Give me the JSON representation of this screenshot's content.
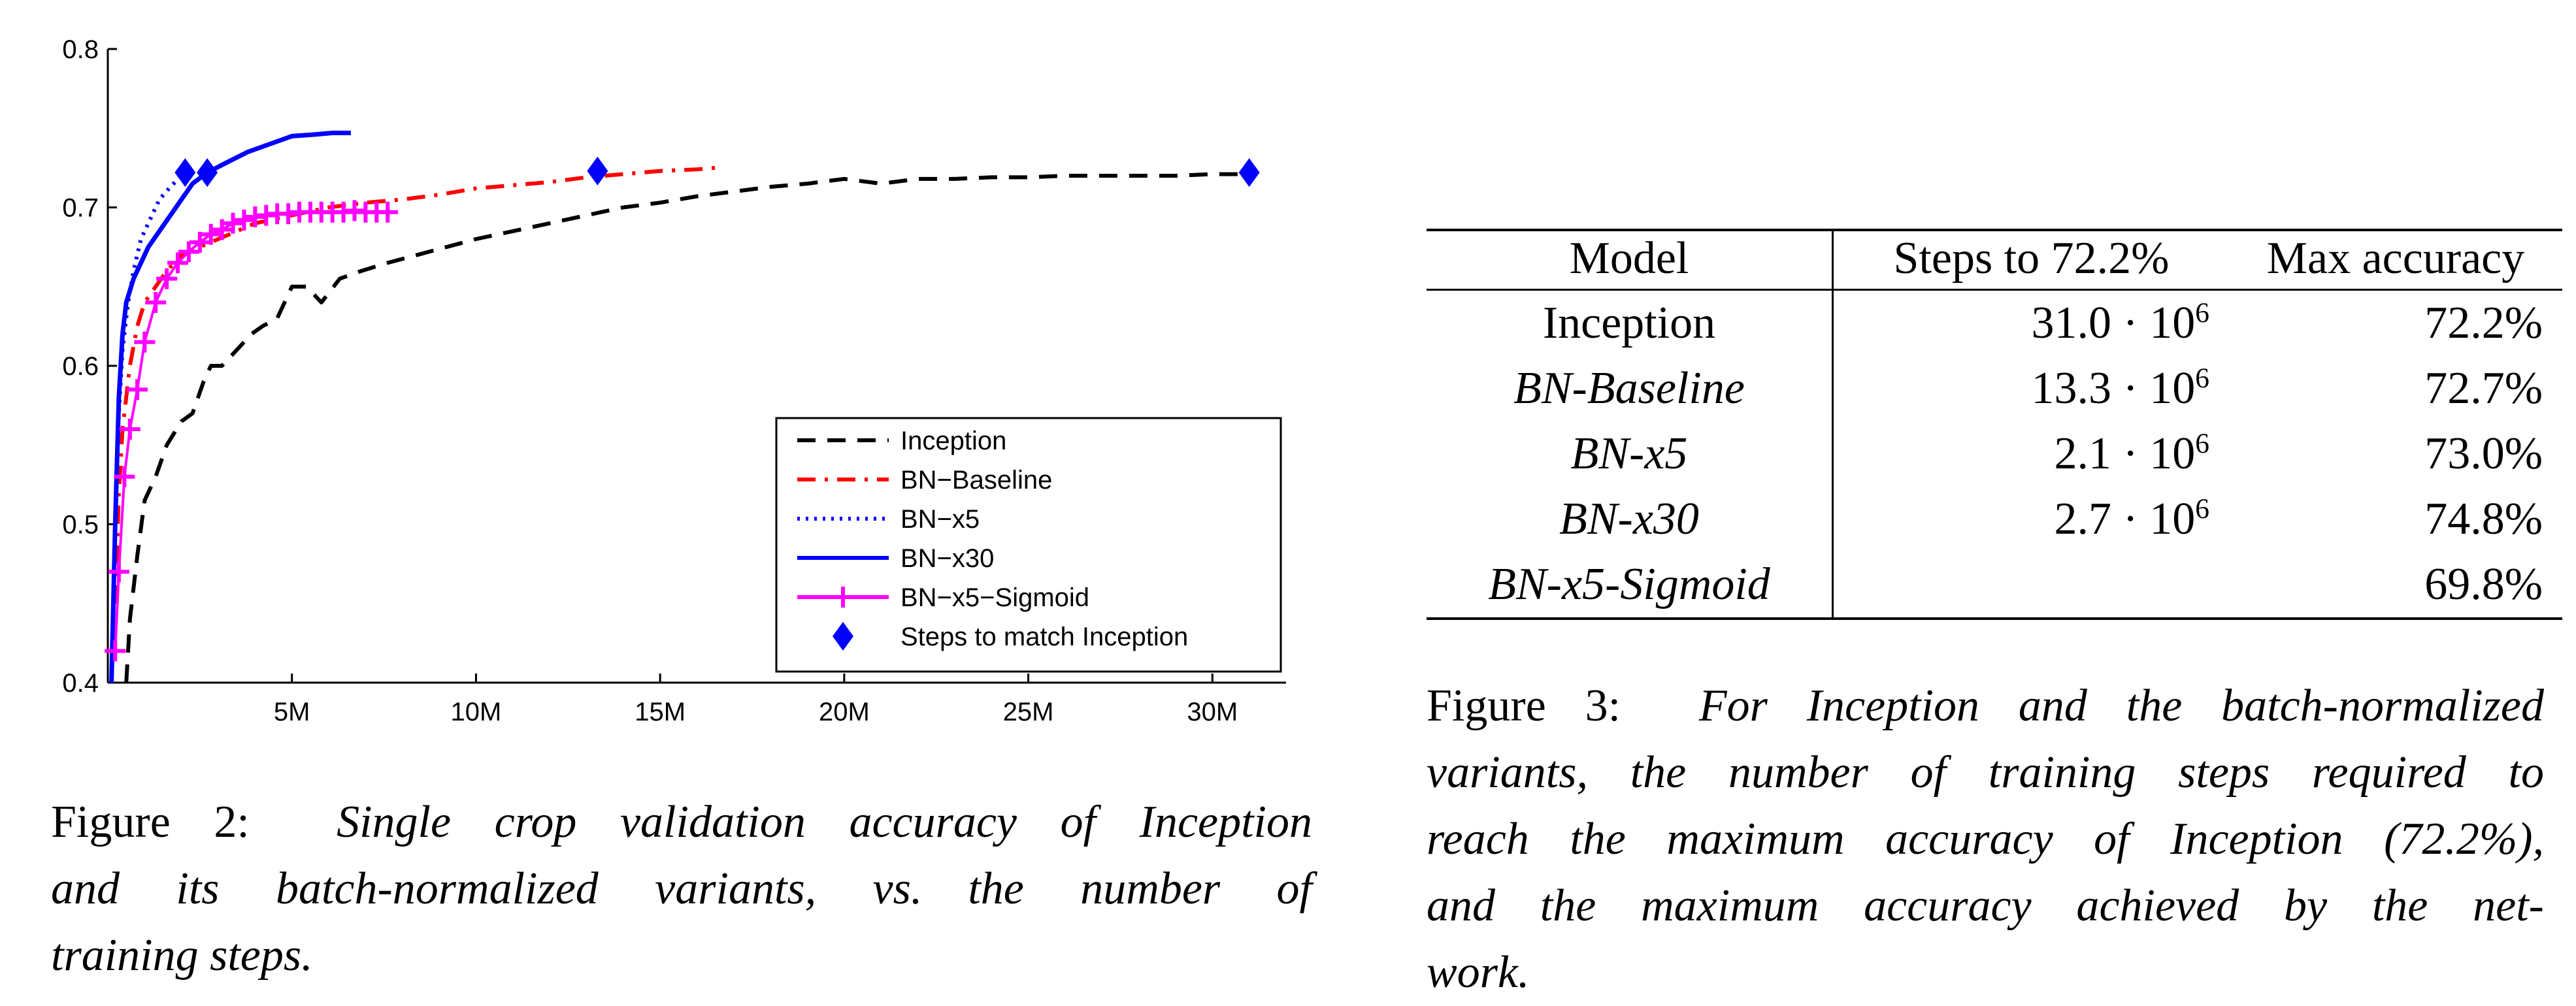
{
  "chart_data": {
    "type": "line",
    "xlim": [
      0,
      32000000
    ],
    "ylim": [
      0.4,
      0.8
    ],
    "x_ticks": [
      {
        "value": 5000000,
        "label": "5M"
      },
      {
        "value": 10000000,
        "label": "10M"
      },
      {
        "value": 15000000,
        "label": "15M"
      },
      {
        "value": 20000000,
        "label": "20M"
      },
      {
        "value": 25000000,
        "label": "25M"
      },
      {
        "value": 30000000,
        "label": "30M"
      }
    ],
    "y_ticks": [
      {
        "value": 0.4,
        "label": "0.4"
      },
      {
        "value": 0.5,
        "label": "0.5"
      },
      {
        "value": 0.6,
        "label": "0.6"
      },
      {
        "value": 0.7,
        "label": "0.7"
      },
      {
        "value": 0.8,
        "label": "0.8"
      }
    ],
    "grid": false,
    "legend_position": "bottom-right",
    "series": [
      {
        "name": "Inception",
        "color": "#000000",
        "style": "dashed",
        "x": [
          500000,
          600000,
          800000,
          1000000,
          1300000,
          1600000,
          2000000,
          2300000,
          2600000,
          2800000,
          3100000,
          3500000,
          3900000,
          4200000,
          4600000,
          5000000,
          5400000,
          5800000,
          6300000,
          6900000,
          7600000,
          8400000,
          9200000,
          10000000,
          11000000,
          12000000,
          13000000,
          14000000,
          15000000,
          16000000,
          17000000,
          18000000,
          19000000,
          20000000,
          21000000,
          22000000,
          23000000,
          24000000,
          25000000,
          26000000,
          27000000,
          28000000,
          29000000,
          30000000,
          31000000
        ],
        "y": [
          0.4,
          0.44,
          0.48,
          0.515,
          0.53,
          0.55,
          0.565,
          0.57,
          0.59,
          0.6,
          0.6,
          0.61,
          0.62,
          0.625,
          0.63,
          0.65,
          0.65,
          0.64,
          0.655,
          0.66,
          0.665,
          0.67,
          0.675,
          0.68,
          0.685,
          0.69,
          0.695,
          0.7,
          0.703,
          0.707,
          0.71,
          0.713,
          0.715,
          0.718,
          0.715,
          0.718,
          0.718,
          0.719,
          0.719,
          0.72,
          0.72,
          0.72,
          0.72,
          0.721,
          0.721
        ]
      },
      {
        "name": "BN−Baseline",
        "color": "#ff0000",
        "style": "dashdot",
        "x": [
          200000,
          300000,
          400000,
          600000,
          800000,
          1000000,
          1300000,
          1600000,
          2000000,
          2500000,
          3000000,
          3500000,
          4000000,
          5000000,
          6000000,
          7000000,
          8000000,
          9000000,
          10000000,
          11000000,
          12000000,
          13000000,
          14000000,
          15000000,
          16000000,
          16500000
        ],
        "y": [
          0.45,
          0.52,
          0.56,
          0.6,
          0.625,
          0.64,
          0.65,
          0.66,
          0.67,
          0.675,
          0.68,
          0.685,
          0.69,
          0.695,
          0.7,
          0.703,
          0.705,
          0.708,
          0.712,
          0.714,
          0.716,
          0.719,
          0.721,
          0.723,
          0.724,
          0.725
        ]
      },
      {
        "name": "BN−x5",
        "color": "#0000ff",
        "style": "dotted",
        "x": [
          100000,
          200000,
          300000,
          400000,
          550000,
          700000,
          900000,
          1100000,
          1400000,
          1700000,
          2000000,
          2100000
        ],
        "y": [
          0.4,
          0.5,
          0.57,
          0.61,
          0.64,
          0.66,
          0.68,
          0.69,
          0.705,
          0.713,
          0.72,
          0.722
        ]
      },
      {
        "name": "BN−x30",
        "color": "#0000ff",
        "style": "solid",
        "x": [
          100000,
          200000,
          300000,
          400000,
          500000,
          700000,
          900000,
          1100000,
          1400000,
          1700000,
          2000000,
          2300000,
          2700000,
          3200000,
          3800000,
          4400000,
          5000000,
          5600000,
          6100000,
          6600000
        ],
        "y": [
          0.4,
          0.5,
          0.58,
          0.62,
          0.64,
          0.655,
          0.665,
          0.675,
          0.685,
          0.695,
          0.705,
          0.715,
          0.722,
          0.728,
          0.735,
          0.74,
          0.745,
          0.746,
          0.747,
          0.747
        ]
      },
      {
        "name": "BN−x5−Sigmoid",
        "color": "#ff00ff",
        "style": "plus",
        "x": [
          200000,
          300000,
          450000,
          600000,
          800000,
          1000000,
          1300000,
          1600000,
          1900000,
          2200000,
          2500000,
          2800000,
          3100000,
          3400000,
          3700000,
          4000000,
          4300000,
          4600000,
          4900000,
          5200000,
          5500000,
          5800000,
          6100000,
          6400000,
          6700000,
          7000000,
          7300000,
          7600000
        ],
        "y": [
          0.42,
          0.47,
          0.53,
          0.56,
          0.585,
          0.615,
          0.64,
          0.655,
          0.665,
          0.672,
          0.678,
          0.683,
          0.686,
          0.69,
          0.692,
          0.694,
          0.695,
          0.696,
          0.696,
          0.697,
          0.697,
          0.697,
          0.697,
          0.697,
          0.698,
          0.697,
          0.697,
          0.697
        ]
      }
    ],
    "markers": {
      "name": "Steps to match Inception",
      "color": "#0000ff",
      "shape": "diamond",
      "points": [
        {
          "x": 2100000,
          "y": 0.722
        },
        {
          "x": 2700000,
          "y": 0.722
        },
        {
          "x": 13300000,
          "y": 0.723
        },
        {
          "x": 31000000,
          "y": 0.722
        }
      ]
    }
  },
  "figure2": {
    "label": "Figure 2:",
    "caption_lines": [
      "Single crop validation accuracy of Inception",
      "and its batch-normalized variants, vs. the number of",
      "training steps."
    ]
  },
  "table": {
    "headers": {
      "model": "Model",
      "steps": "Steps to 72.2%",
      "acc": "Max accuracy"
    },
    "rows": [
      {
        "model": "Inception",
        "italic": false,
        "steps_base": "31.0 · 10",
        "steps_exp": "6",
        "acc": "72.2%"
      },
      {
        "model": "BN-Baseline",
        "italic": true,
        "steps_base": "13.3 · 10",
        "steps_exp": "6",
        "acc": "72.7%"
      },
      {
        "model": "BN-x5",
        "italic": true,
        "steps_base": "2.1 · 10",
        "steps_exp": "6",
        "acc": "73.0%"
      },
      {
        "model": "BN-x30",
        "italic": true,
        "steps_base": "2.7 · 10",
        "steps_exp": "6",
        "acc": "74.8%"
      },
      {
        "model": "BN-x5-Sigmoid",
        "italic": true,
        "steps_base": "",
        "steps_exp": "",
        "acc": "69.8%"
      }
    ]
  },
  "figure3": {
    "label": "Figure 3:",
    "caption_lines": [
      "For Inception and the batch-normalized",
      "variants, the number of training steps required to",
      "reach the maximum accuracy of Inception (72.2%),",
      "and the maximum accuracy achieved by the net-",
      "work."
    ]
  }
}
